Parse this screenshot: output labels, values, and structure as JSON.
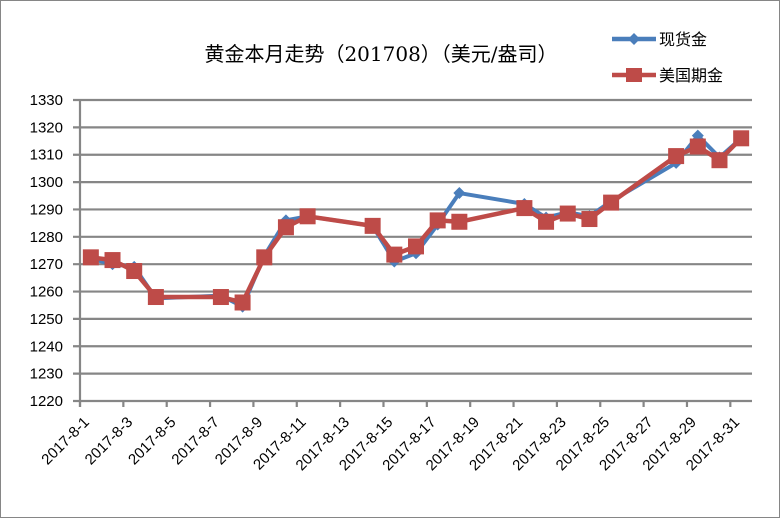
{
  "chart_data": {
    "type": "line",
    "title": "黄金本月走势（201708）（美元/盎司）",
    "xlabel": "",
    "ylabel": "",
    "ylim": [
      1220,
      1330
    ],
    "yticks": [
      1220,
      1230,
      1240,
      1250,
      1260,
      1270,
      1280,
      1290,
      1300,
      1310,
      1320,
      1330
    ],
    "grid": true,
    "legend_position": "top-right",
    "x_axis_type": "date-category",
    "x_start": "2017-8-1",
    "x_end": "2017-8-31",
    "xtick_labels": [
      "2017-8-1",
      "2017-8-3",
      "2017-8-5",
      "2017-8-7",
      "2017-8-9",
      "2017-8-11",
      "2017-8-13",
      "2017-8-15",
      "2017-8-17",
      "2017-8-19",
      "2017-8-21",
      "2017-8-23",
      "2017-8-25",
      "2017-8-27",
      "2017-8-29",
      "2017-8-31"
    ],
    "x": [
      1,
      2,
      3,
      4,
      7,
      8,
      9,
      10,
      11,
      14,
      15,
      16,
      17,
      18,
      21,
      22,
      23,
      24,
      25,
      28,
      29,
      30,
      31
    ],
    "series": [
      {
        "name": "现货金",
        "color": "#4A7EBB",
        "marker": "diamond",
        "values": [
          1272,
          1270,
          1269,
          1257.5,
          1258.5,
          1254.5,
          1273,
          1286,
          1287.5,
          1284,
          1271,
          1274,
          1284.5,
          1296,
          1292,
          1287,
          1289,
          1287.5,
          1293,
          1307,
          1317,
          1309,
          1316
        ]
      },
      {
        "name": "美国期金",
        "color": "#BE4B48",
        "marker": "square",
        "values": [
          1272.5,
          1271.5,
          1267.5,
          1258,
          1258,
          1256,
          1272.5,
          1283.5,
          1287.5,
          1284,
          1273.5,
          1276.5,
          1286,
          1285.5,
          1290.5,
          1285.5,
          1288.5,
          1286.5,
          1292.5,
          1309.5,
          1313,
          1308,
          1316
        ]
      }
    ]
  }
}
